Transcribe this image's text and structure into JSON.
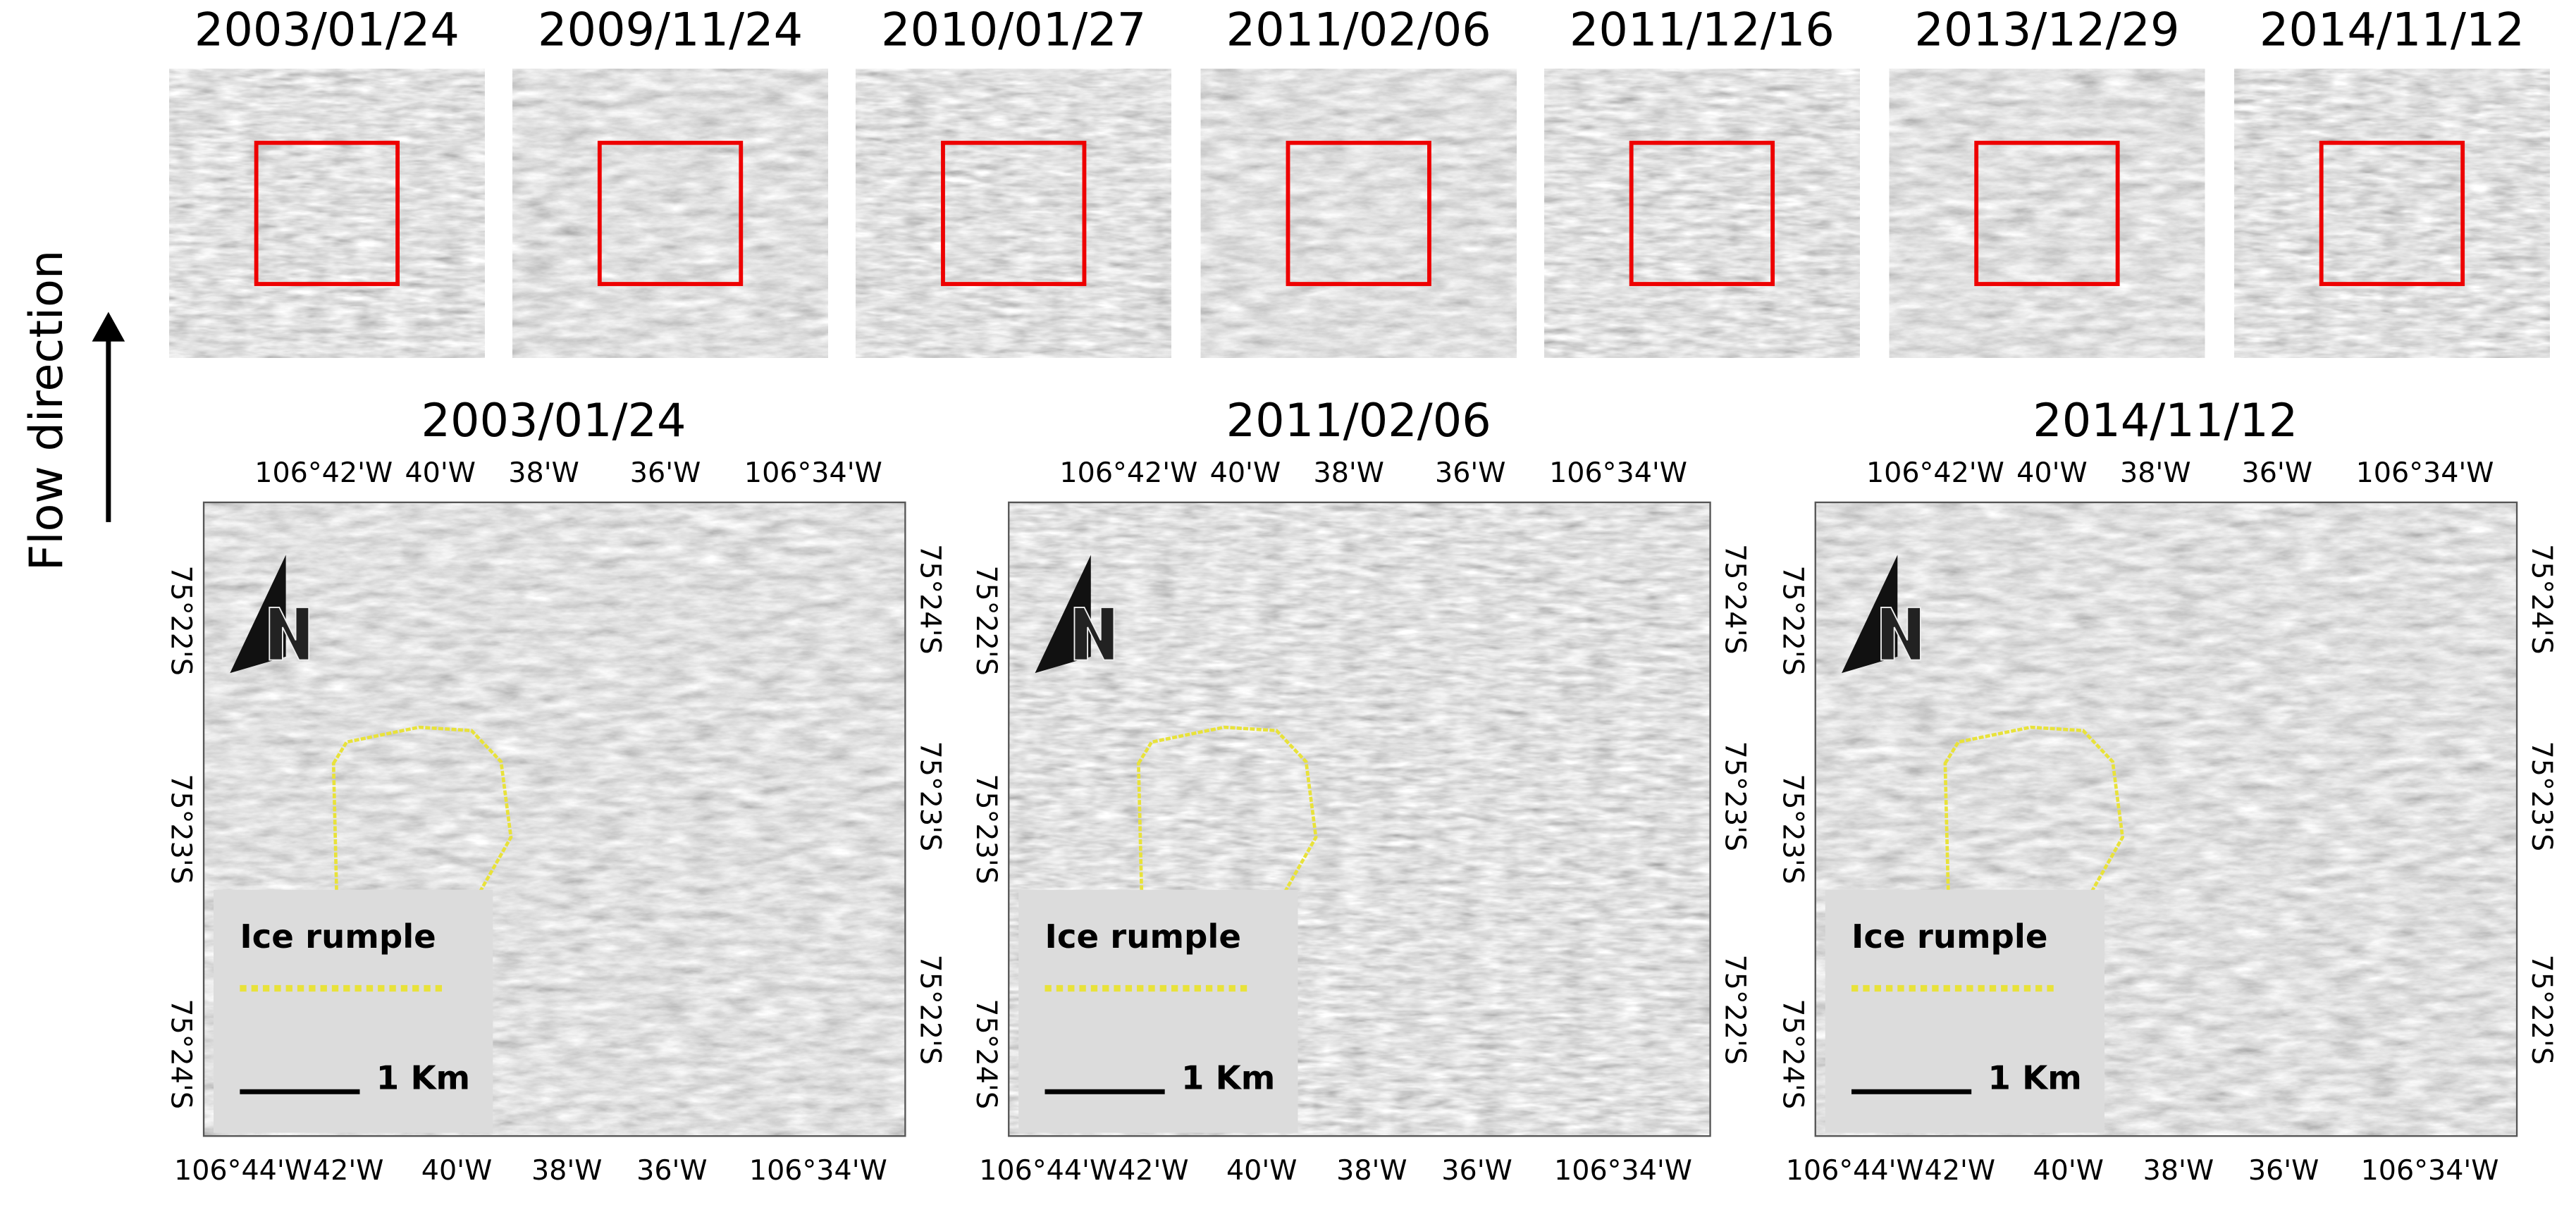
{
  "side_label": "Flow direction",
  "thumbnails": [
    "2003/01/24",
    "2009/11/24",
    "2010/01/27",
    "2011/02/06",
    "2011/12/16",
    "2013/12/29",
    "2014/11/12"
  ],
  "panels": [
    {
      "title": "2003/01/24",
      "top_axis": [
        "106°42'W",
        "40'W",
        "38'W",
        "36'W",
        "106°34'W"
      ],
      "bottom_axis": [
        "106°44'W",
        "42'W",
        "40'W",
        "38'W",
        "36'W",
        "106°34'W"
      ],
      "left_axis": [
        "75°22'S",
        "75°23'S",
        "75°24'S"
      ],
      "right_axis": [
        "75°24'S",
        "75°23'S",
        "75°22'S"
      ],
      "legend": {
        "label": "Ice rumple",
        "scale": "1 Km"
      }
    },
    {
      "title": "2011/02/06",
      "top_axis": [
        "106°42'W",
        "40'W",
        "38'W",
        "36'W",
        "106°34'W"
      ],
      "bottom_axis": [
        "106°44'W",
        "42'W",
        "40'W",
        "38'W",
        "36'W",
        "106°34'W"
      ],
      "left_axis": [
        "75°22'S",
        "75°23'S",
        "75°24'S"
      ],
      "right_axis": [
        "75°24'S",
        "75°23'S",
        "75°22'S"
      ],
      "legend": {
        "label": "Ice rumple",
        "scale": "1 Km"
      }
    },
    {
      "title": "2014/11/12",
      "top_axis": [
        "106°42'W",
        "40'W",
        "38'W",
        "36'W",
        "106°34'W"
      ],
      "bottom_axis": [
        "106°44'W",
        "42'W",
        "40'W",
        "38'W",
        "36'W",
        "106°34'W"
      ],
      "left_axis": [
        "75°22'S",
        "75°23'S",
        "75°24'S"
      ],
      "right_axis": [
        "75°24'S",
        "75°23'S",
        "75°22'S"
      ],
      "legend": {
        "label": "Ice rumple",
        "scale": "1 Km"
      }
    }
  ]
}
